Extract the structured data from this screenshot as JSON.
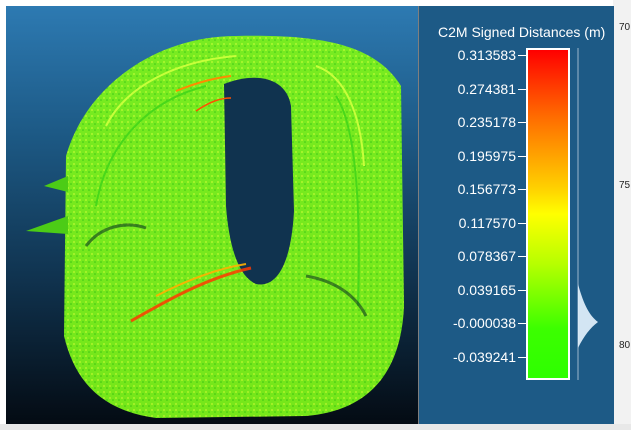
{
  "scale": {
    "title": "C2M Signed Distances (m)",
    "ticks": [
      "0.313583",
      "0.274381",
      "0.235178",
      "0.195975",
      "0.156773",
      "0.117570",
      "0.078367",
      "0.039165",
      "-0.000038",
      "-0.039241"
    ]
  },
  "edge_labels": [
    "70",
    "75",
    "80"
  ],
  "colors": {
    "bg_top": "#2d7ab2",
    "bg_bottom": "#040b13",
    "high": "#ff0000",
    "mid": "#ffff00",
    "low": "#2eff00"
  }
}
